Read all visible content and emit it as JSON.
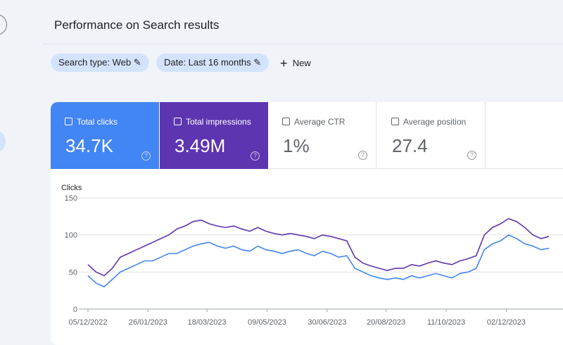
{
  "header": {
    "title": "Performance on Search results"
  },
  "filters": [
    "Search type: Web",
    "Date: Last 16 months"
  ],
  "new_button": "New",
  "metrics": [
    {
      "label": "Total clicks",
      "value": "34.7K"
    },
    {
      "label": "Total impressions",
      "value": "3.49M"
    },
    {
      "label": "Average CTR",
      "value": "1%"
    },
    {
      "label": "Average position",
      "value": "27.4"
    }
  ],
  "chart_data": {
    "type": "line",
    "y_label": "Clicks",
    "x": [
      "05/12/2022",
      "12/12/2022",
      "19/12/2022",
      "26/12/2022",
      "02/01/2023",
      "09/01/2023",
      "16/01/2023",
      "23/01/2023",
      "30/01/2023",
      "06/02/2023",
      "13/02/2023",
      "20/02/2023",
      "27/02/2023",
      "06/03/2023",
      "13/03/2023",
      "20/03/2023",
      "27/03/2023",
      "03/04/2023",
      "10/04/2023",
      "17/04/2023",
      "24/04/2023",
      "01/05/2023",
      "08/05/2023",
      "15/05/2023",
      "22/05/2023",
      "29/05/2023",
      "05/06/2023",
      "12/06/2023",
      "19/06/2023",
      "26/06/2023",
      "03/07/2023",
      "10/07/2023",
      "17/07/2023",
      "24/07/2023",
      "31/07/2023",
      "07/08/2023",
      "14/08/2023",
      "21/08/2023",
      "28/08/2023",
      "04/09/2023",
      "11/09/2023",
      "18/09/2023",
      "25/09/2023",
      "02/10/2023",
      "09/10/2023",
      "16/10/2023",
      "23/10/2023",
      "30/10/2023",
      "06/11/2023",
      "13/11/2023",
      "20/11/2023",
      "27/11/2023",
      "04/12/2023",
      "11/12/2023",
      "18/12/2023",
      "25/12/2023",
      "01/01/2024",
      "08/01/2024"
    ],
    "series": [
      {
        "name": "Total clicks",
        "color": "#4285f4",
        "values": [
          45,
          35,
          30,
          40,
          50,
          55,
          60,
          65,
          65,
          70,
          75,
          75,
          80,
          85,
          88,
          90,
          85,
          82,
          85,
          80,
          78,
          85,
          80,
          78,
          75,
          78,
          80,
          75,
          72,
          78,
          75,
          70,
          72,
          55,
          50,
          45,
          42,
          40,
          42,
          40,
          45,
          42,
          45,
          48,
          45,
          42,
          48,
          50,
          55,
          80,
          88,
          92,
          100,
          95,
          88,
          85,
          80,
          82
        ]
      },
      {
        "name": "Total impressions",
        "color": "#5e35b1",
        "values": [
          60,
          50,
          45,
          55,
          70,
          75,
          80,
          85,
          90,
          95,
          100,
          108,
          112,
          118,
          120,
          115,
          112,
          110,
          112,
          108,
          105,
          110,
          105,
          102,
          100,
          102,
          100,
          98,
          95,
          100,
          98,
          95,
          92,
          70,
          62,
          58,
          55,
          52,
          55,
          55,
          60,
          58,
          62,
          65,
          62,
          60,
          65,
          68,
          72,
          100,
          110,
          115,
          122,
          118,
          110,
          100,
          95,
          98
        ]
      }
    ],
    "xlim": [
      "05/12/2022",
      "14/01/2024"
    ],
    "xticks": [
      "05/12/2022",
      "26/01/2023",
      "18/03/2023",
      "09/05/2023",
      "30/06/2023",
      "20/08/2023",
      "11/10/2023",
      "02/12/2023"
    ],
    "ylim": [
      0,
      150
    ],
    "yticks": [
      0,
      50,
      100,
      150
    ],
    "grid": true
  }
}
